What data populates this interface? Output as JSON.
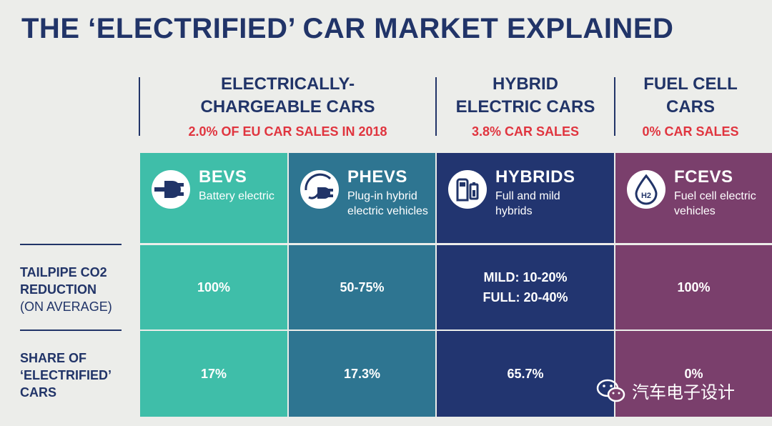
{
  "title": "THE ‘ELECTRIFIED’ CAR MARKET EXPLAINED",
  "groups": [
    {
      "title_line1": "ELECTRICALLY-",
      "title_line2": "CHARGEABLE CARS",
      "share": "2.0% OF EU CAR SALES IN 2018"
    },
    {
      "title_line1": "HYBRID",
      "title_line2": "ELECTRIC CARS",
      "share": "3.8% CAR SALES"
    },
    {
      "title_line1": "FUEL CELL",
      "title_line2": "CARS",
      "share": "0% CAR SALES"
    }
  ],
  "columns": [
    {
      "name": "BEVS",
      "desc": "Battery electric",
      "icon": "electric-plug-icon",
      "color": "#3fbea9",
      "co2": "100%",
      "share": "17%"
    },
    {
      "name": "PHEVS",
      "desc": "Plug-in hybrid electric vehicles",
      "icon": "plug-in-hybrid-icon",
      "color": "#2e7591",
      "co2": "50-75%",
      "share": "17.3%"
    },
    {
      "name": "HYBRIDS",
      "desc": "Full and mild hybrids",
      "icon": "fuel-pump-battery-icon",
      "color": "#223570",
      "co2_line1": "MILD: 10-20%",
      "co2_line2": "FULL: 20-40%",
      "share": "65.7%"
    },
    {
      "name": "FCEVS",
      "desc": "Fuel cell electric vehicles",
      "icon": "hydrogen-drop-icon",
      "color": "#7a3f6c",
      "co2": "100%",
      "share": "0%"
    }
  ],
  "rows": {
    "co2": {
      "line1": "TAILPIPE CO2",
      "line2": "REDUCTION",
      "line3": "(ON AVERAGE)"
    },
    "share": {
      "line1": "SHARE OF",
      "line2": "‘ELECTRIFIED’",
      "line3": "CARS"
    }
  },
  "watermark": {
    "text": "汽车电子设计",
    "icon": "wechat-icon"
  },
  "colors": {
    "background": "#ecedea",
    "navy": "#213468",
    "accent_red": "#e0353f"
  }
}
